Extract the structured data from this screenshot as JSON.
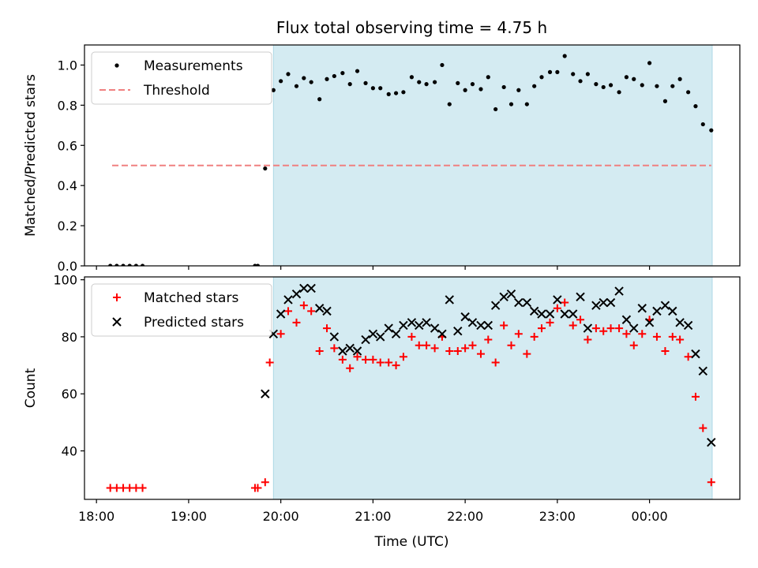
{
  "chart_data": {
    "title": "Flux total observing time = 4.75 h",
    "xlabel": "Time (UTC)",
    "x_ticks": [
      "18:00",
      "19:00",
      "20:00",
      "21:00",
      "22:00",
      "23:00",
      "00:00"
    ],
    "x_tick_hours": [
      18,
      19,
      20,
      21,
      22,
      23,
      24
    ],
    "xlim_hours": [
      17.87,
      24.98
    ],
    "shaded_region_hours": [
      19.92,
      24.68
    ],
    "colors": {
      "shade": "#d4ebf2",
      "shade_edge": "#add8e6",
      "threshold": "#f08080",
      "matched": "#ff0000",
      "predicted": "#000000",
      "measurement": "#000000"
    },
    "panels": [
      {
        "type": "scatter",
        "ylabel": "Matched/Predicted stars",
        "ylim": [
          0,
          1.1
        ],
        "y_ticks": [
          "0.0",
          "0.2",
          "0.4",
          "0.6",
          "0.8",
          "1.0"
        ],
        "y_tick_values": [
          0,
          0.2,
          0.4,
          0.6,
          0.8,
          1.0
        ],
        "legend_position": "top-left",
        "series": [
          {
            "name": "Measurements",
            "marker": "dot",
            "points": [
              [
                18.15,
                0.0
              ],
              [
                18.22,
                0.0
              ],
              [
                18.29,
                0.0
              ],
              [
                18.36,
                0.0
              ],
              [
                18.43,
                0.0
              ],
              [
                18.5,
                0.0
              ],
              [
                19.72,
                0.0
              ],
              [
                19.75,
                0.0
              ],
              [
                19.83,
                0.485
              ],
              [
                19.92,
                0.875
              ],
              [
                20.0,
                0.92
              ],
              [
                20.08,
                0.955
              ],
              [
                20.17,
                0.895
              ],
              [
                20.25,
                0.935
              ],
              [
                20.33,
                0.915
              ],
              [
                20.42,
                0.83
              ],
              [
                20.5,
                0.93
              ],
              [
                20.58,
                0.945
              ],
              [
                20.67,
                0.96
              ],
              [
                20.75,
                0.905
              ],
              [
                20.83,
                0.97
              ],
              [
                20.92,
                0.91
              ],
              [
                21.0,
                0.885
              ],
              [
                21.08,
                0.885
              ],
              [
                21.17,
                0.855
              ],
              [
                21.25,
                0.86
              ],
              [
                21.33,
                0.865
              ],
              [
                21.42,
                0.94
              ],
              [
                21.5,
                0.915
              ],
              [
                21.58,
                0.905
              ],
              [
                21.67,
                0.915
              ],
              [
                21.75,
                1.0
              ],
              [
                21.83,
                0.805
              ],
              [
                21.92,
                0.91
              ],
              [
                22.0,
                0.875
              ],
              [
                22.08,
                0.905
              ],
              [
                22.17,
                0.88
              ],
              [
                22.25,
                0.94
              ],
              [
                22.33,
                0.78
              ],
              [
                22.42,
                0.89
              ],
              [
                22.5,
                0.805
              ],
              [
                22.58,
                0.875
              ],
              [
                22.67,
                0.805
              ],
              [
                22.75,
                0.895
              ],
              [
                22.83,
                0.94
              ],
              [
                22.92,
                0.965
              ],
              [
                23.0,
                0.965
              ],
              [
                23.08,
                1.045
              ],
              [
                23.17,
                0.955
              ],
              [
                23.25,
                0.92
              ],
              [
                23.33,
                0.955
              ],
              [
                23.42,
                0.905
              ],
              [
                23.5,
                0.89
              ],
              [
                23.58,
                0.9
              ],
              [
                23.67,
                0.865
              ],
              [
                23.75,
                0.94
              ],
              [
                23.83,
                0.93
              ],
              [
                23.92,
                0.9
              ],
              [
                24.0,
                1.01
              ],
              [
                24.08,
                0.895
              ],
              [
                24.17,
                0.82
              ],
              [
                24.25,
                0.895
              ],
              [
                24.33,
                0.93
              ],
              [
                24.42,
                0.865
              ],
              [
                24.5,
                0.795
              ],
              [
                24.58,
                0.705
              ],
              [
                24.67,
                0.675
              ]
            ]
          },
          {
            "name": "Threshold",
            "marker": "dashed-line",
            "points": [
              [
                18.17,
                0.5
              ],
              [
                24.67,
                0.5
              ]
            ]
          }
        ]
      },
      {
        "type": "scatter",
        "ylabel": "Count",
        "ylim": [
          23,
          101
        ],
        "y_ticks": [
          "40",
          "60",
          "80",
          "100"
        ],
        "y_tick_values": [
          40,
          60,
          80,
          100
        ],
        "legend_position": "top-left",
        "series": [
          {
            "name": "Matched stars",
            "marker": "plus",
            "points": [
              [
                18.15,
                27
              ],
              [
                18.22,
                27
              ],
              [
                18.29,
                27
              ],
              [
                18.36,
                27
              ],
              [
                18.43,
                27
              ],
              [
                18.5,
                27
              ],
              [
                19.72,
                27
              ],
              [
                19.75,
                27
              ],
              [
                19.83,
                29
              ],
              [
                19.88,
                71
              ],
              [
                20.0,
                81
              ],
              [
                20.08,
                89
              ],
              [
                20.17,
                85
              ],
              [
                20.25,
                91
              ],
              [
                20.33,
                89
              ],
              [
                20.42,
                75
              ],
              [
                20.5,
                83
              ],
              [
                20.58,
                76
              ],
              [
                20.67,
                72
              ],
              [
                20.75,
                69
              ],
              [
                20.83,
                73
              ],
              [
                20.92,
                72
              ],
              [
                21.0,
                72
              ],
              [
                21.08,
                71
              ],
              [
                21.17,
                71
              ],
              [
                21.25,
                70
              ],
              [
                21.33,
                73
              ],
              [
                21.42,
                80
              ],
              [
                21.5,
                77
              ],
              [
                21.58,
                77
              ],
              [
                21.67,
                76
              ],
              [
                21.75,
                80
              ],
              [
                21.83,
                75
              ],
              [
                21.92,
                75
              ],
              [
                22.0,
                76
              ],
              [
                22.08,
                77
              ],
              [
                22.17,
                74
              ],
              [
                22.25,
                79
              ],
              [
                22.33,
                71
              ],
              [
                22.42,
                84
              ],
              [
                22.5,
                77
              ],
              [
                22.58,
                81
              ],
              [
                22.67,
                74
              ],
              [
                22.75,
                80
              ],
              [
                22.83,
                83
              ],
              [
                22.92,
                85
              ],
              [
                23.0,
                90
              ],
              [
                23.08,
                92
              ],
              [
                23.17,
                84
              ],
              [
                23.25,
                86
              ],
              [
                23.33,
                79
              ],
              [
                23.42,
                83
              ],
              [
                23.5,
                82
              ],
              [
                23.58,
                83
              ],
              [
                23.67,
                83
              ],
              [
                23.75,
                81
              ],
              [
                23.83,
                77
              ],
              [
                23.92,
                81
              ],
              [
                24.0,
                86
              ],
              [
                24.08,
                80
              ],
              [
                24.17,
                75
              ],
              [
                24.25,
                80
              ],
              [
                24.33,
                79
              ],
              [
                24.42,
                73
              ],
              [
                24.5,
                59
              ],
              [
                24.58,
                48
              ],
              [
                24.67,
                29
              ]
            ]
          },
          {
            "name": "Predicted stars",
            "marker": "cross",
            "points": [
              [
                19.83,
                60
              ],
              [
                19.92,
                81
              ],
              [
                20.0,
                88
              ],
              [
                20.08,
                93
              ],
              [
                20.17,
                95
              ],
              [
                20.25,
                97
              ],
              [
                20.33,
                97
              ],
              [
                20.42,
                90
              ],
              [
                20.5,
                89
              ],
              [
                20.58,
                80
              ],
              [
                20.67,
                75
              ],
              [
                20.75,
                76
              ],
              [
                20.83,
                75
              ],
              [
                20.92,
                79
              ],
              [
                21.0,
                81
              ],
              [
                21.08,
                80
              ],
              [
                21.17,
                83
              ],
              [
                21.25,
                81
              ],
              [
                21.33,
                84
              ],
              [
                21.42,
                85
              ],
              [
                21.5,
                84
              ],
              [
                21.58,
                85
              ],
              [
                21.67,
                83
              ],
              [
                21.75,
                81
              ],
              [
                21.83,
                93
              ],
              [
                21.92,
                82
              ],
              [
                22.0,
                87
              ],
              [
                22.08,
                85
              ],
              [
                22.17,
                84
              ],
              [
                22.25,
                84
              ],
              [
                22.33,
                91
              ],
              [
                22.42,
                94
              ],
              [
                22.5,
                95
              ],
              [
                22.58,
                92
              ],
              [
                22.67,
                92
              ],
              [
                22.75,
                89
              ],
              [
                22.83,
                88
              ],
              [
                22.92,
                88
              ],
              [
                23.0,
                93
              ],
              [
                23.08,
                88
              ],
              [
                23.17,
                88
              ],
              [
                23.25,
                94
              ],
              [
                23.33,
                83
              ],
              [
                23.42,
                91
              ],
              [
                23.5,
                92
              ],
              [
                23.58,
                92
              ],
              [
                23.67,
                96
              ],
              [
                23.75,
                86
              ],
              [
                23.83,
                83
              ],
              [
                23.92,
                90
              ],
              [
                24.0,
                85
              ],
              [
                24.08,
                89
              ],
              [
                24.17,
                91
              ],
              [
                24.25,
                89
              ],
              [
                24.33,
                85
              ],
              [
                24.42,
                84
              ],
              [
                24.5,
                74
              ],
              [
                24.58,
                68
              ],
              [
                24.67,
                43
              ]
            ]
          }
        ]
      }
    ]
  }
}
